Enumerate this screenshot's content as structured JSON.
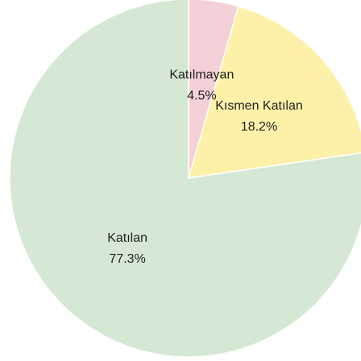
{
  "chart_data": {
    "type": "pie",
    "categories": [
      "Katılmayan",
      "Kısmen Katılan",
      "Katılan"
    ],
    "values": [
      4.5,
      18.2,
      77.3
    ],
    "value_labels": [
      "4.5%",
      "18.2%",
      "77.3%"
    ],
    "colors": [
      "#f4d1d6",
      "#fdf1a9",
      "#d4e8d4"
    ]
  }
}
